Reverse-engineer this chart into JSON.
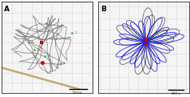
{
  "panel_A": {
    "label": "A",
    "bg_color": "#f5f5f5",
    "grid_color": "#d8d8d8",
    "path_color": "#888888",
    "hive_color_red": "#cc0000",
    "landmark_color": "#44aa44",
    "scale_bar": "200 m",
    "diagonal_line_color": "#c8a870"
  },
  "panel_B": {
    "label": "B",
    "bg_color": "#f5f5f5",
    "grid_color": "#d8d8d8",
    "path_color_blue": "#2222dd",
    "path_color_black": "#333333",
    "hive_color_red": "#cc0000",
    "scale_bar": "200 m"
  },
  "fig_bg": "#ffffff"
}
